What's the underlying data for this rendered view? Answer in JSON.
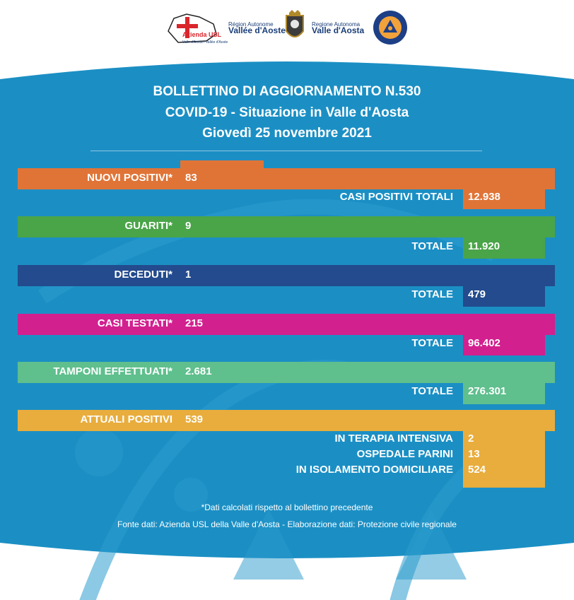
{
  "logos": {
    "azienda_usl": {
      "name": "Azienda USL",
      "sub": "Valle d'Aosta / Vallée d'Aoste"
    },
    "region_left": {
      "line1": "Région Autonome",
      "line2": "Vallée d'Aoste"
    },
    "region_right": {
      "line1": "Regione Autonoma",
      "line2": "Valle d'Aosta"
    },
    "protezione_civile": {
      "icon": "civil-protection-emblem"
    }
  },
  "header": {
    "line1": "BOLLETTINO DI AGGIORNAMENTO N.530",
    "line2": "COVID-19 - Situazione in Valle d'Aosta",
    "line3": "Giovedì 25 novembre 2021"
  },
  "rows": {
    "nuovi": {
      "label": "NUOVI POSITIVI*",
      "value": "83",
      "total_label": "CASI POSITIVI TOTALI",
      "total_value": "12.938",
      "color": "#e07437"
    },
    "guariti": {
      "label": "GUARITI*",
      "value": "9",
      "total_label": "TOTALE",
      "total_value": "11.920",
      "color": "#4aa448"
    },
    "deceduti": {
      "label": "DECEDUTI*",
      "value": "1",
      "total_label": "TOTALE",
      "total_value": "479",
      "color": "#234b8d"
    },
    "testati": {
      "label": "CASI TESTATI*",
      "value": "215",
      "total_label": "TOTALE",
      "total_value": "96.402",
      "color": "#d2208f"
    },
    "tamponi": {
      "label": "TAMPONI EFFETTUATI*",
      "value": "2.681",
      "total_label": "TOTALE",
      "total_value": "276.301",
      "color": "#5fbf8d"
    },
    "attuali": {
      "label": "ATTUALI POSITIVI",
      "value": "539",
      "color": "#e8ad3d",
      "breakdown": [
        {
          "label": "IN TERAPIA INTENSIVA",
          "value": "2"
        },
        {
          "label": "OSPEDALE PARINI",
          "value": "13"
        },
        {
          "label": "IN ISOLAMENTO DOMICILIARE",
          "value": "524"
        }
      ]
    }
  },
  "footer": {
    "note": "*Dati calcolati rispetto al bollettino precedente",
    "source": "Fonte dati: Azienda USL della Valle d'Aosta - Elaborazione dati: Protezione civile regionale"
  },
  "colors": {
    "background_blue": "#1a8ec2"
  }
}
